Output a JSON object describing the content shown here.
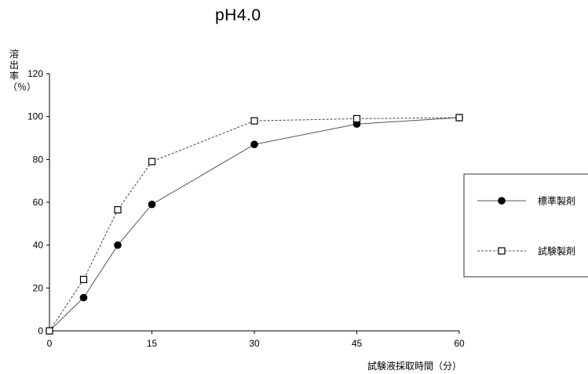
{
  "chart_data": {
    "type": "line",
    "title": "pH4.0",
    "xlabel": "試験液採取時間（分）",
    "ylabel": "溶出率（％）",
    "x_ticks": [
      0,
      15,
      30,
      45,
      60
    ],
    "y_ticks": [
      0,
      20,
      40,
      60,
      80,
      100,
      120
    ],
    "xlim": [
      0,
      60
    ],
    "ylim": [
      0,
      120
    ],
    "grid": false,
    "legend_position": "right",
    "series": [
      {
        "name": "標準製剤",
        "marker": "filled-circle",
        "line_style": "solid",
        "color": "#000000",
        "x": [
          0,
          5,
          10,
          15,
          30,
          45,
          60
        ],
        "y": [
          0,
          15.5,
          40,
          59,
          87,
          96.5,
          99.5
        ]
      },
      {
        "name": "試験製剤",
        "marker": "open-square",
        "line_style": "dashed",
        "color": "#000000",
        "x": [
          0,
          5,
          10,
          15,
          30,
          45,
          60
        ],
        "y": [
          0,
          24,
          56.5,
          79,
          98,
          99,
          99.5
        ]
      }
    ]
  }
}
